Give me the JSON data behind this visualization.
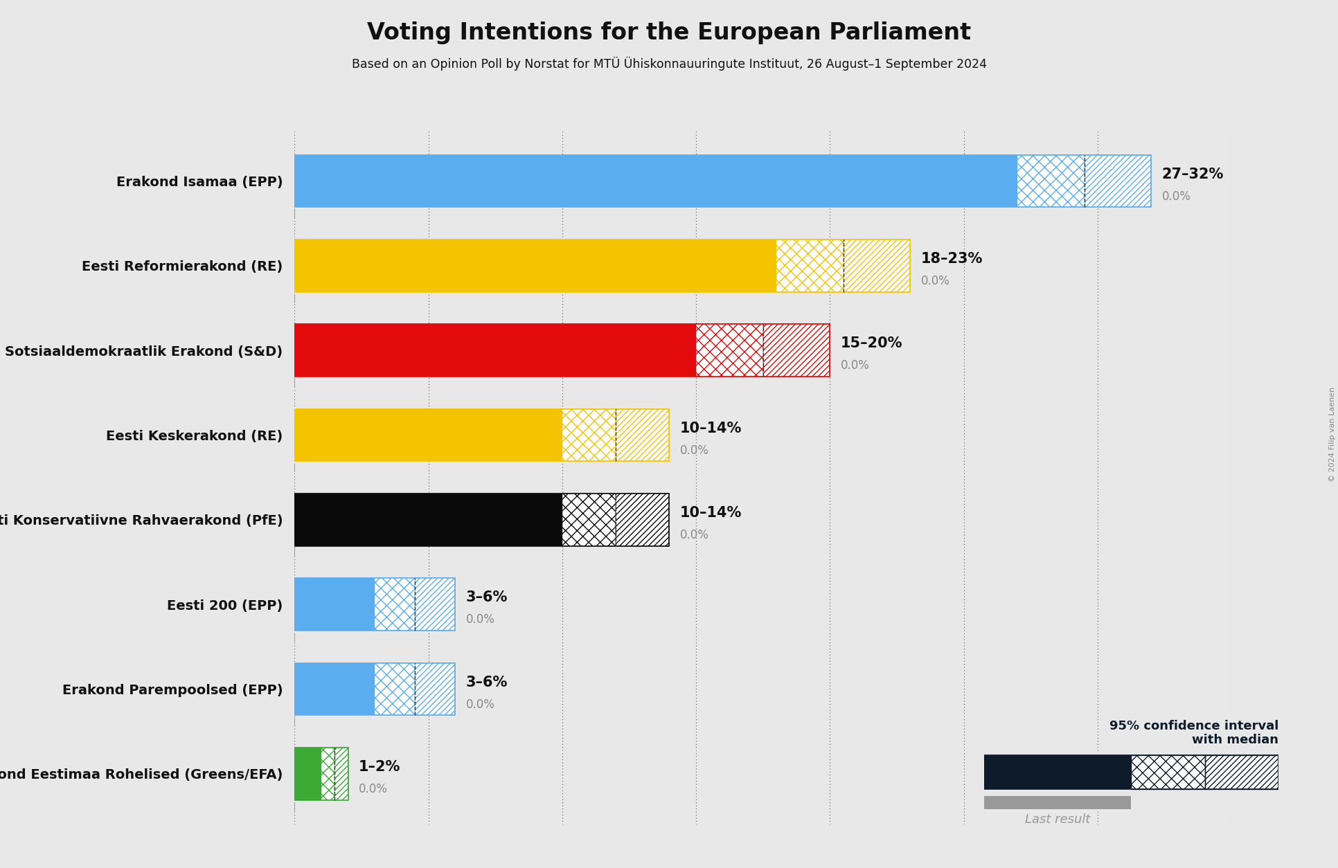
{
  "title": "Voting Intentions for the European Parliament",
  "subtitle": "Based on an Opinion Poll by Norstat for MTÜ Ühiskonnauuringute Instituut, 26 August–1 September 2024",
  "copyright": "© 2024 Filip van Laenen",
  "background_color": "#e8e8e8",
  "parties": [
    {
      "name": "Erakond Isamaa (EPP)",
      "low": 27,
      "high": 32,
      "median": 29.5,
      "last": 0.0,
      "color": "#5aadee"
    },
    {
      "name": "Eesti Reformierakond (RE)",
      "low": 18,
      "high": 23,
      "median": 20.5,
      "last": 0.0,
      "color": "#f5c400"
    },
    {
      "name": "Sotsiaaldemokraatlik Erakond (S&D)",
      "low": 15,
      "high": 20,
      "median": 17.5,
      "last": 0.0,
      "color": "#e20a0a"
    },
    {
      "name": "Eesti Keskerakond (RE)",
      "low": 10,
      "high": 14,
      "median": 12.0,
      "last": 0.0,
      "color": "#f5c400"
    },
    {
      "name": "Eesti Konservatiivne Rahvaerakond (PfE)",
      "low": 10,
      "high": 14,
      "median": 12.0,
      "last": 0.0,
      "color": "#0a0a0a"
    },
    {
      "name": "Eesti 200 (EPP)",
      "low": 3,
      "high": 6,
      "median": 4.5,
      "last": 0.0,
      "color": "#5aadee"
    },
    {
      "name": "Erakond Parempoolsed (EPP)",
      "low": 3,
      "high": 6,
      "median": 4.5,
      "last": 0.0,
      "color": "#5aadee"
    },
    {
      "name": "Erakond Eestimaa Rohelised (Greens/EFA)",
      "low": 1,
      "high": 2,
      "median": 1.5,
      "last": 0.0,
      "color": "#3aaa35"
    }
  ],
  "xlim": [
    0,
    35
  ],
  "grid_ticks": [
    0,
    5,
    10,
    15,
    20,
    25,
    30,
    35
  ],
  "label_color": "#111111",
  "gray_color": "#888888",
  "legend_ci_color": "#0d1b2a",
  "legend_last_color": "#999999"
}
